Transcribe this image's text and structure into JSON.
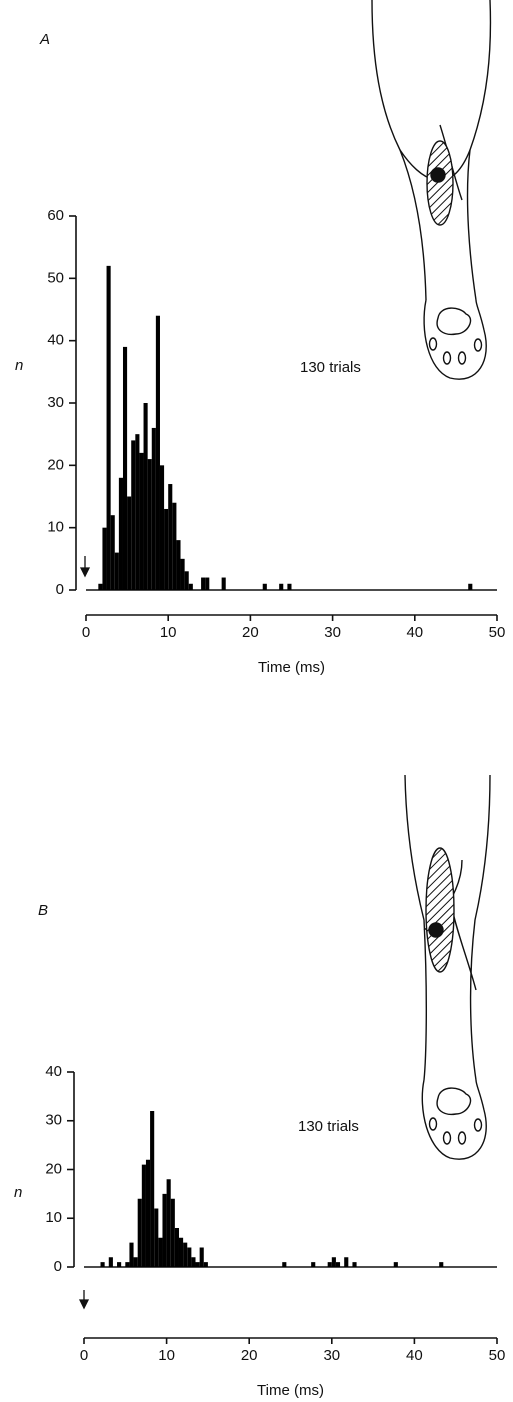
{
  "chart_data": [
    {
      "type": "histogram",
      "panel_label": "A",
      "ylabel": "n",
      "xlabel": "Time (ms)",
      "annotation": "130 trials",
      "color": "#000000",
      "bins": [
        0,
        0.5,
        1,
        1.5,
        2,
        2.5,
        3,
        3.5,
        4,
        4.5,
        5,
        5.5,
        6,
        6.5,
        7,
        7.5,
        8,
        8.5,
        9,
        9.5,
        10,
        10.5,
        11,
        11.5,
        12,
        12.5,
        13,
        13.5,
        14,
        14.5,
        15,
        15.5,
        16,
        16.5,
        17,
        17.5,
        18,
        18.5,
        19,
        19.5,
        20,
        20.5,
        21,
        21.5,
        22,
        22.5,
        23,
        23.5,
        24,
        24.5,
        25,
        25.5,
        26,
        26.5,
        27,
        27.5,
        28,
        28.5,
        29,
        29.5,
        30,
        30.5,
        31,
        31.5,
        32,
        32.5,
        33,
        33.5,
        34,
        34.5,
        35,
        35.5,
        36,
        36.5,
        37,
        37.5,
        38,
        38.5,
        39,
        39.5,
        40,
        40.5,
        41,
        41.5,
        42,
        42.5,
        43,
        43.5,
        44,
        44.5,
        45,
        45.5,
        46,
        46.5,
        47,
        47.5,
        48,
        48.5,
        49,
        49.5,
        50
      ],
      "counts": [
        0,
        0,
        0,
        1,
        10,
        52,
        12,
        6,
        18,
        39,
        15,
        24,
        25,
        22,
        30,
        21,
        26,
        44,
        20,
        13,
        17,
        14,
        8,
        5,
        3,
        1,
        0,
        0,
        2,
        2,
        0,
        0,
        0,
        2,
        0,
        0,
        0,
        0,
        0,
        0,
        0,
        0,
        0,
        1,
        0,
        0,
        0,
        1,
        0,
        1,
        0,
        0,
        0,
        0,
        0,
        0,
        0,
        0,
        0,
        0,
        0,
        0,
        0,
        0,
        0,
        0,
        0,
        0,
        0,
        0,
        0,
        0,
        0,
        0,
        0,
        0,
        0,
        0,
        0,
        0,
        0,
        0,
        0,
        0,
        0,
        0,
        0,
        0,
        0,
        0,
        0,
        0,
        0,
        1,
        0,
        0,
        0,
        0,
        0,
        0
      ],
      "xlim": [
        0,
        50
      ],
      "ylim": [
        0,
        60
      ],
      "xticks": [
        0,
        10,
        20,
        30,
        40,
        50
      ],
      "yticks": [
        0,
        10,
        20,
        30,
        40,
        50,
        60
      ]
    },
    {
      "type": "histogram",
      "panel_label": "B",
      "ylabel": "n",
      "xlabel": "Time (ms)",
      "annotation": "130 trials",
      "color": "#000000",
      "bins": [
        0,
        0.5,
        1,
        1.5,
        2,
        2.5,
        3,
        3.5,
        4,
        4.5,
        5,
        5.5,
        6,
        6.5,
        7,
        7.5,
        8,
        8.5,
        9,
        9.5,
        10,
        10.5,
        11,
        11.5,
        12,
        12.5,
        13,
        13.5,
        14,
        14.5,
        15,
        15.5,
        16,
        16.5,
        17,
        17.5,
        18,
        18.5,
        19,
        19.5,
        20,
        20.5,
        21,
        21.5,
        22,
        22.5,
        23,
        23.5,
        24,
        24.5,
        25,
        25.5,
        26,
        26.5,
        27,
        27.5,
        28,
        28.5,
        29,
        29.5,
        30,
        30.5,
        31,
        31.5,
        32,
        32.5,
        33,
        33.5,
        34,
        34.5,
        35,
        35.5,
        36,
        36.5,
        37,
        37.5,
        38,
        38.5,
        39,
        39.5,
        40,
        40.5,
        41,
        41.5,
        42,
        42.5,
        43,
        43.5,
        44,
        44.5,
        45,
        45.5,
        46,
        46.5,
        47,
        47.5,
        48,
        48.5,
        49,
        49.5,
        50
      ],
      "counts": [
        0,
        0,
        0,
        0,
        1,
        0,
        2,
        0,
        1,
        0,
        1,
        5,
        2,
        14,
        21,
        22,
        32,
        12,
        6,
        15,
        18,
        14,
        8,
        6,
        5,
        4,
        2,
        1,
        4,
        1,
        0,
        0,
        0,
        0,
        0,
        0,
        0,
        0,
        0,
        0,
        0,
        0,
        0,
        0,
        0,
        0,
        0,
        0,
        1,
        0,
        0,
        0,
        0,
        0,
        0,
        1,
        0,
        0,
        0,
        1,
        2,
        1,
        0,
        2,
        0,
        1,
        0,
        0,
        0,
        0,
        0,
        0,
        0,
        0,
        0,
        1,
        0,
        0,
        0,
        0,
        0,
        0,
        0,
        0,
        0,
        0,
        1,
        0,
        0,
        0,
        0,
        0,
        0,
        0,
        0,
        0,
        0,
        0,
        0,
        0
      ],
      "xlim": [
        0,
        50
      ],
      "ylim": [
        0,
        40
      ],
      "xticks": [
        0,
        10,
        20,
        30,
        40,
        50
      ],
      "yticks": [
        0,
        10,
        20,
        30,
        40
      ]
    }
  ]
}
